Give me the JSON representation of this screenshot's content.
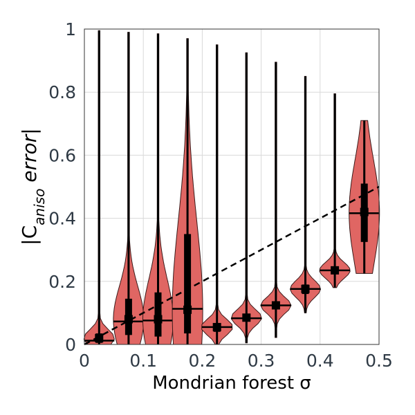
{
  "chart_data": {
    "type": "violin",
    "xlabel": "Mondrian forest σ",
    "ylabel": {
      "prefix": "|C",
      "subscript": "aniso",
      "suffix": " error|"
    },
    "xlim": [
      0,
      0.5
    ],
    "ylim": [
      0,
      1
    ],
    "xticks": [
      "0",
      "0.1",
      "0.2",
      "0.3",
      "0.4",
      "0.5"
    ],
    "yticks": [
      "0",
      "0.2",
      "0.4",
      "0.6",
      "0.8",
      "1"
    ],
    "grid": true,
    "violin_color": "#e06663",
    "violin_edge_color": "#3a1a1a",
    "trend_line": {
      "style": "dashed",
      "color": "#000000",
      "x": [
        0,
        0.5
      ],
      "y": [
        0,
        0.5
      ]
    },
    "violins": [
      {
        "x": 0.025,
        "min": 0.0,
        "max": 0.995,
        "q1": 0.005,
        "median": 0.02,
        "q3": 0.035,
        "mean": 0.012
      },
      {
        "x": 0.075,
        "min": 0.0,
        "max": 0.99,
        "q1": 0.03,
        "median": 0.08,
        "q3": 0.145,
        "mean": 0.073
      },
      {
        "x": 0.125,
        "min": 0.0,
        "max": 0.985,
        "q1": 0.025,
        "median": 0.08,
        "q3": 0.165,
        "mean": 0.076
      },
      {
        "x": 0.175,
        "min": 0.0,
        "max": 0.97,
        "q1": 0.035,
        "median": 0.11,
        "q3": 0.35,
        "mean": 0.113
      },
      {
        "x": 0.225,
        "min": 0.0,
        "max": 0.95,
        "q1": 0.04,
        "median": 0.055,
        "q3": 0.065,
        "mean": 0.055
      },
      {
        "x": 0.275,
        "min": 0.005,
        "max": 0.925,
        "q1": 0.075,
        "median": 0.085,
        "q3": 0.095,
        "mean": 0.083
      },
      {
        "x": 0.325,
        "min": 0.022,
        "max": 0.895,
        "q1": 0.115,
        "median": 0.124,
        "q3": 0.132,
        "mean": 0.124
      },
      {
        "x": 0.375,
        "min": 0.1,
        "max": 0.85,
        "q1": 0.16,
        "median": 0.176,
        "q3": 0.19,
        "mean": 0.176
      },
      {
        "x": 0.425,
        "min": 0.18,
        "max": 0.795,
        "q1": 0.225,
        "median": 0.235,
        "q3": 0.245,
        "mean": 0.235
      },
      {
        "x": 0.475,
        "min": 0.225,
        "max": 0.71,
        "q1": 0.325,
        "median": 0.42,
        "q3": 0.51,
        "mean": 0.416
      }
    ]
  }
}
